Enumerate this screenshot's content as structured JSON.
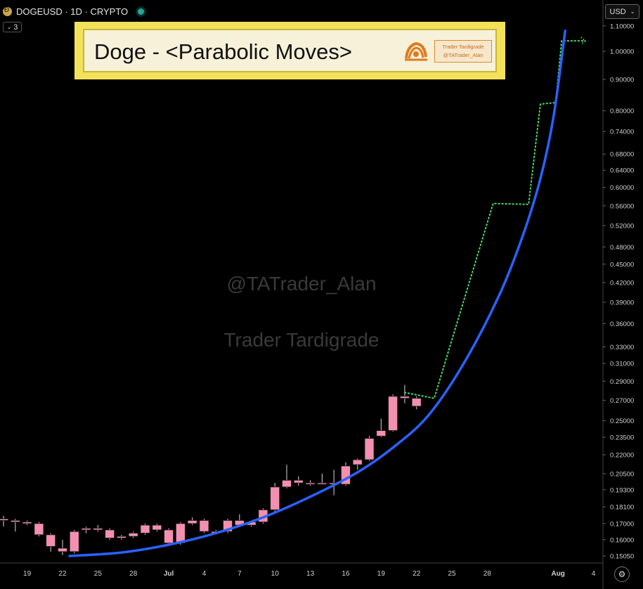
{
  "symbol_bar": {
    "symbol": "DOGEUSD · 1D · CRYPTO",
    "coin_icon": "dogecoin-icon"
  },
  "indicators": {
    "count": "3"
  },
  "currency": {
    "label": "USD"
  },
  "settings": {
    "icon": "gear-icon"
  },
  "title_box": {
    "title": "Doge - <Parabolic Moves>",
    "brand_line1": "Trader Tardigrade",
    "brand_line2": "@TATrader_Alan"
  },
  "watermark": {
    "handle": "@TATrader_Alan",
    "name": "Trader Tardigrade"
  },
  "colors": {
    "candle": "#f48fb1",
    "curve": "#2962ff",
    "projection": "#4cd964",
    "title_fill": "#f3e15a"
  },
  "chart_data": {
    "type": "candlestick",
    "y_scale": "log",
    "ylim": [
      0.147,
      1.12
    ],
    "price_ticks": [
      1.1,
      1.0,
      0.9,
      0.8,
      0.74,
      0.68,
      0.64,
      0.6,
      0.56,
      0.52,
      0.48,
      0.45,
      0.42,
      0.39,
      0.36,
      0.33,
      0.31,
      0.29,
      0.27,
      0.25,
      0.235,
      0.22,
      0.205,
      0.193,
      0.181,
      0.17,
      0.16,
      0.1505
    ],
    "price_tick_labels": [
      "1.10000",
      "1.00000",
      "0.90000",
      "0.80000",
      "0.74000",
      "0.68000",
      "0.64000",
      "0.60000",
      "0.56000",
      "0.52000",
      "0.48000",
      "0.45000",
      "0.42000",
      "0.39000",
      "0.36000",
      "0.33000",
      "0.31000",
      "0.29000",
      "0.27000",
      "0.25000",
      "0.23500",
      "0.22000",
      "0.20500",
      "0.19300",
      "0.18100",
      "0.17000",
      "0.16000",
      "0.15050"
    ],
    "x_ticks": [
      {
        "label": "19",
        "day": 0
      },
      {
        "label": "22",
        "day": 3
      },
      {
        "label": "25",
        "day": 6
      },
      {
        "label": "28",
        "day": 9
      },
      {
        "label": "Jul",
        "day": 12
      },
      {
        "label": "4",
        "day": 15
      },
      {
        "label": "7",
        "day": 18
      },
      {
        "label": "10",
        "day": 21
      },
      {
        "label": "13",
        "day": 24
      },
      {
        "label": "16",
        "day": 27
      },
      {
        "label": "19",
        "day": 30
      },
      {
        "label": "22",
        "day": 33
      },
      {
        "label": "25",
        "day": 36
      },
      {
        "label": "28",
        "day": 39
      },
      {
        "label": "Aug",
        "day": 45
      },
      {
        "label": "4",
        "day": 48
      }
    ],
    "day_range": [
      -2.3,
      48.8
    ],
    "candles": [
      {
        "day": -2,
        "o": 0.172,
        "h": 0.175,
        "l": 0.168,
        "c": 0.173
      },
      {
        "day": -1,
        "o": 0.171,
        "h": 0.173,
        "l": 0.165,
        "c": 0.172
      },
      {
        "day": 0,
        "o": 0.171,
        "h": 0.172,
        "l": 0.169,
        "c": 0.17
      },
      {
        "day": 1,
        "o": 0.17,
        "h": 0.171,
        "l": 0.162,
        "c": 0.163
      },
      {
        "day": 2,
        "o": 0.163,
        "h": 0.164,
        "l": 0.153,
        "c": 0.156
      },
      {
        "day": 3,
        "o": 0.155,
        "h": 0.16,
        "l": 0.151,
        "c": 0.153
      },
      {
        "day": 4,
        "o": 0.153,
        "h": 0.166,
        "l": 0.152,
        "c": 0.165
      },
      {
        "day": 5,
        "o": 0.166,
        "h": 0.168,
        "l": 0.164,
        "c": 0.167
      },
      {
        "day": 6,
        "o": 0.167,
        "h": 0.169,
        "l": 0.165,
        "c": 0.166
      },
      {
        "day": 7,
        "o": 0.166,
        "h": 0.167,
        "l": 0.16,
        "c": 0.161
      },
      {
        "day": 8,
        "o": 0.161,
        "h": 0.163,
        "l": 0.16,
        "c": 0.162
      },
      {
        "day": 9,
        "o": 0.162,
        "h": 0.165,
        "l": 0.161,
        "c": 0.164
      },
      {
        "day": 10,
        "o": 0.164,
        "h": 0.17,
        "l": 0.163,
        "c": 0.169
      },
      {
        "day": 11,
        "o": 0.169,
        "h": 0.17,
        "l": 0.165,
        "c": 0.166
      },
      {
        "day": 12,
        "o": 0.166,
        "h": 0.167,
        "l": 0.157,
        "c": 0.158
      },
      {
        "day": 13,
        "o": 0.158,
        "h": 0.171,
        "l": 0.157,
        "c": 0.17
      },
      {
        "day": 14,
        "o": 0.17,
        "h": 0.174,
        "l": 0.169,
        "c": 0.172
      },
      {
        "day": 15,
        "o": 0.172,
        "h": 0.173,
        "l": 0.164,
        "c": 0.165
      },
      {
        "day": 16,
        "o": 0.165,
        "h": 0.166,
        "l": 0.164,
        "c": 0.164
      },
      {
        "day": 17,
        "o": 0.165,
        "h": 0.173,
        "l": 0.164,
        "c": 0.172
      },
      {
        "day": 18,
        "o": 0.172,
        "h": 0.176,
        "l": 0.168,
        "c": 0.169
      },
      {
        "day": 19,
        "o": 0.169,
        "h": 0.172,
        "l": 0.168,
        "c": 0.171
      },
      {
        "day": 20,
        "o": 0.171,
        "h": 0.18,
        "l": 0.17,
        "c": 0.179
      },
      {
        "day": 21,
        "o": 0.179,
        "h": 0.198,
        "l": 0.178,
        "c": 0.195
      },
      {
        "day": 22,
        "o": 0.195,
        "h": 0.212,
        "l": 0.194,
        "c": 0.2
      },
      {
        "day": 23,
        "o": 0.2,
        "h": 0.203,
        "l": 0.196,
        "c": 0.198
      },
      {
        "day": 24,
        "o": 0.198,
        "h": 0.2,
        "l": 0.196,
        "c": 0.198
      },
      {
        "day": 25,
        "o": 0.198,
        "h": 0.205,
        "l": 0.197,
        "c": 0.198
      },
      {
        "day": 26,
        "o": 0.198,
        "h": 0.208,
        "l": 0.189,
        "c": 0.198
      },
      {
        "day": 27,
        "o": 0.197,
        "h": 0.214,
        "l": 0.196,
        "c": 0.211
      },
      {
        "day": 28,
        "o": 0.212,
        "h": 0.217,
        "l": 0.208,
        "c": 0.216
      },
      {
        "day": 29,
        "o": 0.216,
        "h": 0.236,
        "l": 0.215,
        "c": 0.234
      },
      {
        "day": 30,
        "o": 0.236,
        "h": 0.252,
        "l": 0.235,
        "c": 0.241
      },
      {
        "day": 31,
        "o": 0.241,
        "h": 0.276,
        "l": 0.24,
        "c": 0.274
      },
      {
        "day": 32,
        "o": 0.272,
        "h": 0.286,
        "l": 0.267,
        "c": 0.274
      },
      {
        "day": 33,
        "o": 0.272,
        "h": 0.274,
        "l": 0.261,
        "c": 0.264
      }
    ],
    "parabolic_curve": [
      {
        "day": 3.6,
        "price": 0.1505
      },
      {
        "day": 8,
        "price": 0.1525
      },
      {
        "day": 12,
        "price": 0.157
      },
      {
        "day": 16,
        "price": 0.164
      },
      {
        "day": 20,
        "price": 0.174
      },
      {
        "day": 24,
        "price": 0.188
      },
      {
        "day": 28,
        "price": 0.206
      },
      {
        "day": 31,
        "price": 0.226
      },
      {
        "day": 34,
        "price": 0.255
      },
      {
        "day": 37,
        "price": 0.31
      },
      {
        "day": 40,
        "price": 0.4
      },
      {
        "day": 42,
        "price": 0.5
      },
      {
        "day": 43.5,
        "price": 0.62
      },
      {
        "day": 44.6,
        "price": 0.78
      },
      {
        "day": 45.6,
        "price": 1.08
      }
    ],
    "projection_path": [
      {
        "day": 32,
        "price": 0.278
      },
      {
        "day": 34.5,
        "price": 0.272
      },
      {
        "day": 39.5,
        "price": 0.565
      },
      {
        "day": 42.5,
        "price": 0.563
      },
      {
        "day": 43.5,
        "price": 0.82
      },
      {
        "day": 44.8,
        "price": 0.825
      },
      {
        "day": 45.3,
        "price": 1.04
      },
      {
        "day": 47.3,
        "price": 1.04
      }
    ]
  }
}
